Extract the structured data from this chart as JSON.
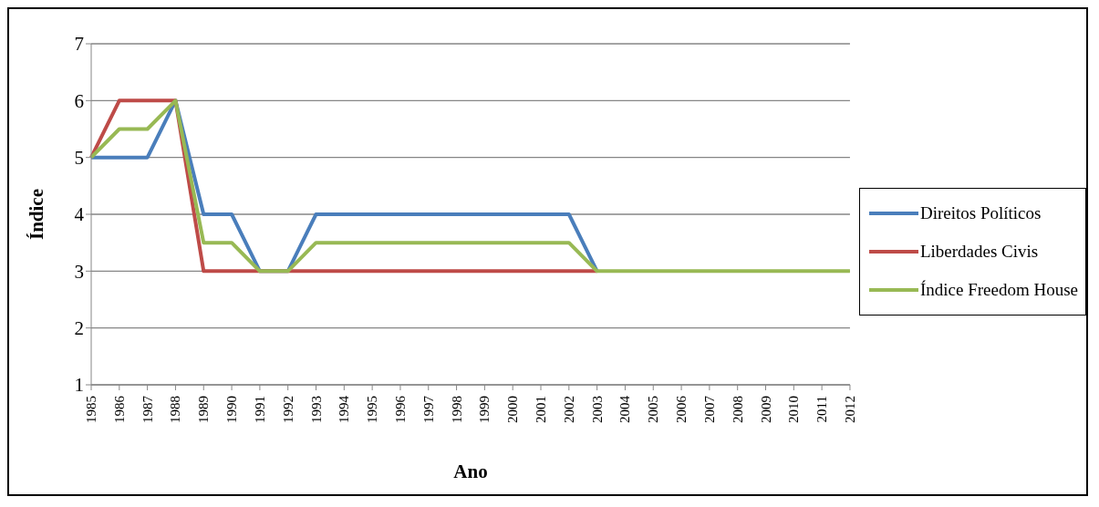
{
  "chart_data": {
    "type": "line",
    "xlabel": "Ano",
    "ylabel": "Índice",
    "categories": [
      "1985",
      "1986",
      "1987",
      "1988",
      "1989",
      "1990",
      "1991",
      "1992",
      "1993",
      "1994",
      "1995",
      "1996",
      "1997",
      "1998",
      "1999",
      "2000",
      "2001",
      "2002",
      "2003",
      "2004",
      "2005",
      "2006",
      "2007",
      "2008",
      "2009",
      "2010",
      "2011",
      "2012"
    ],
    "series": [
      {
        "name": "Direitos Políticos",
        "color": "#4a7ebb",
        "values": [
          5,
          5,
          5,
          6,
          4,
          4,
          3,
          3,
          4,
          4,
          4,
          4,
          4,
          4,
          4,
          4,
          4,
          4,
          3,
          null,
          null,
          null,
          null,
          null,
          null,
          null,
          null,
          null
        ]
      },
      {
        "name": "Liberdades Civis",
        "color": "#be4b48",
        "values": [
          5,
          6,
          6,
          6,
          3,
          3,
          3,
          3,
          3,
          3,
          3,
          3,
          3,
          3,
          3,
          3,
          3,
          3,
          3,
          null,
          null,
          null,
          null,
          null,
          null,
          null,
          null,
          null
        ]
      },
      {
        "name": "Índice Freedom House",
        "color": "#98b954",
        "values": [
          5,
          5.5,
          5.5,
          6,
          3.5,
          3.5,
          3,
          3,
          3.5,
          3.5,
          3.5,
          3.5,
          3.5,
          3.5,
          3.5,
          3.5,
          3.5,
          3.5,
          3,
          3,
          3,
          3,
          3,
          3,
          3,
          3,
          3,
          3
        ]
      }
    ],
    "ylim": [
      1,
      7
    ],
    "yticks": [
      1,
      2,
      3,
      4,
      5,
      6,
      7
    ],
    "grid": "y",
    "legend": "right",
    "marker": "none",
    "line_style": "solid"
  }
}
